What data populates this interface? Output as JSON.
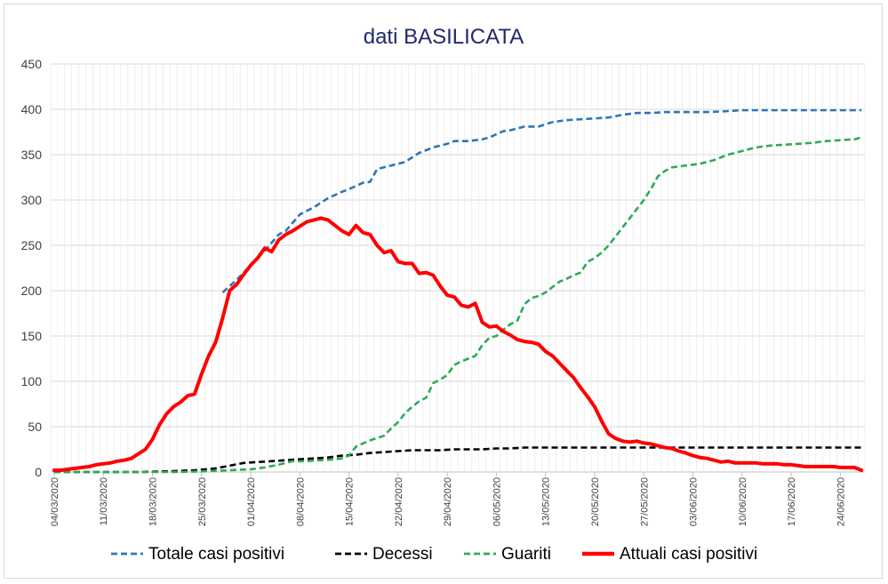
{
  "chart_data": {
    "type": "line",
    "title": "dati BASILICATA",
    "xlabel": "",
    "ylabel": "",
    "ylim": [
      0,
      450
    ],
    "yticks": [
      0,
      50,
      100,
      150,
      200,
      250,
      300,
      350,
      400,
      450
    ],
    "x_start": "04/03/2020",
    "x_end": "28/06/2020",
    "x_tick_labels": [
      "04/03/2020",
      "11/03/2020",
      "18/03/2020",
      "25/03/2020",
      "01/04/2020",
      "08/04/2020",
      "15/04/2020",
      "22/04/2020",
      "29/04/2020",
      "06/05/2020",
      "13/05/2020",
      "20/05/2020",
      "27/05/2020",
      "03/06/2020",
      "10/06/2020",
      "17/06/2020",
      "24/06/2020"
    ],
    "legend_position": "bottom",
    "grid": true,
    "series": [
      {
        "name": "Totale casi positivi",
        "color": "#2e75b6",
        "style": "dashed",
        "points": [
          [
            24,
            198
          ],
          [
            26,
            212
          ],
          [
            28,
            228
          ],
          [
            30,
            244
          ],
          [
            32,
            262
          ],
          [
            33,
            266
          ],
          [
            35,
            284
          ],
          [
            37,
            292
          ],
          [
            39,
            302
          ],
          [
            41,
            309
          ],
          [
            42,
            312
          ],
          [
            44,
            319
          ],
          [
            45,
            320
          ],
          [
            46,
            334
          ],
          [
            48,
            338
          ],
          [
            50,
            342
          ],
          [
            52,
            352
          ],
          [
            54,
            358
          ],
          [
            56,
            362
          ],
          [
            57,
            365
          ],
          [
            59,
            365
          ],
          [
            61,
            367
          ],
          [
            62,
            369
          ],
          [
            64,
            376
          ],
          [
            65,
            377
          ],
          [
            67,
            381
          ],
          [
            69,
            381
          ],
          [
            71,
            386
          ],
          [
            73,
            388
          ],
          [
            75,
            389
          ],
          [
            77,
            390
          ],
          [
            79,
            391
          ],
          [
            81,
            394
          ],
          [
            83,
            396
          ],
          [
            85,
            396
          ],
          [
            87,
            397
          ],
          [
            90,
            397
          ],
          [
            93,
            397
          ],
          [
            96,
            398
          ],
          [
            98,
            399
          ],
          [
            106,
            399
          ],
          [
            112,
            399
          ],
          [
            115,
            399
          ]
        ]
      },
      {
        "name": "Decessi",
        "color": "#000000",
        "style": "dashed",
        "points": [
          [
            0,
            0
          ],
          [
            12,
            0
          ],
          [
            17,
            1
          ],
          [
            20,
            2
          ],
          [
            23,
            4
          ],
          [
            25,
            7
          ],
          [
            27,
            10
          ],
          [
            29,
            11
          ],
          [
            31,
            12
          ],
          [
            33,
            13
          ],
          [
            35,
            14
          ],
          [
            37,
            15
          ],
          [
            39,
            16
          ],
          [
            41,
            18
          ],
          [
            43,
            19
          ],
          [
            45,
            21
          ],
          [
            47,
            22
          ],
          [
            49,
            23
          ],
          [
            51,
            24
          ],
          [
            53,
            24
          ],
          [
            55,
            24
          ],
          [
            57,
            25
          ],
          [
            59,
            25
          ],
          [
            61,
            25
          ],
          [
            63,
            26
          ],
          [
            65,
            26
          ],
          [
            67,
            27
          ],
          [
            71,
            27
          ],
          [
            75,
            27
          ],
          [
            85,
            27
          ],
          [
            100,
            27
          ],
          [
            115,
            27
          ]
        ]
      },
      {
        "name": "Guariti",
        "color": "#2eaa57",
        "style": "dashed",
        "points": [
          [
            0,
            0
          ],
          [
            18,
            0
          ],
          [
            22,
            1
          ],
          [
            25,
            2
          ],
          [
            28,
            3
          ],
          [
            30,
            5
          ],
          [
            32,
            8
          ],
          [
            34,
            12
          ],
          [
            36,
            12
          ],
          [
            38,
            13
          ],
          [
            40,
            14
          ],
          [
            41,
            15
          ],
          [
            42,
            18
          ],
          [
            43,
            28
          ],
          [
            45,
            35
          ],
          [
            47,
            40
          ],
          [
            48,
            48
          ],
          [
            49,
            55
          ],
          [
            50,
            65
          ],
          [
            51,
            72
          ],
          [
            52,
            78
          ],
          [
            53,
            82
          ],
          [
            54,
            98
          ],
          [
            55,
            102
          ],
          [
            56,
            107
          ],
          [
            57,
            118
          ],
          [
            58,
            122
          ],
          [
            59,
            125
          ],
          [
            60,
            128
          ],
          [
            61,
            140
          ],
          [
            62,
            148
          ],
          [
            63,
            150
          ],
          [
            64,
            157
          ],
          [
            65,
            163
          ],
          [
            66,
            167
          ],
          [
            67,
            185
          ],
          [
            68,
            192
          ],
          [
            69,
            194
          ],
          [
            70,
            198
          ],
          [
            71,
            204
          ],
          [
            72,
            210
          ],
          [
            73,
            213
          ],
          [
            74,
            217
          ],
          [
            75,
            220
          ],
          [
            76,
            232
          ],
          [
            77,
            236
          ],
          [
            78,
            242
          ],
          [
            79,
            250
          ],
          [
            80,
            260
          ],
          [
            81,
            270
          ],
          [
            82,
            280
          ],
          [
            83,
            290
          ],
          [
            84,
            300
          ],
          [
            85,
            312
          ],
          [
            86,
            326
          ],
          [
            87,
            332
          ],
          [
            88,
            336
          ],
          [
            89,
            337
          ],
          [
            90,
            338
          ],
          [
            92,
            340
          ],
          [
            94,
            344
          ],
          [
            96,
            350
          ],
          [
            98,
            354
          ],
          [
            100,
            358
          ],
          [
            102,
            360
          ],
          [
            104,
            361
          ],
          [
            106,
            362
          ],
          [
            108,
            363
          ],
          [
            110,
            365
          ],
          [
            112,
            366
          ],
          [
            114,
            367
          ],
          [
            115,
            369
          ]
        ]
      },
      {
        "name": "Attuali casi positivi",
        "color": "#ff0000",
        "style": "solid",
        "points": [
          [
            0,
            2
          ],
          [
            1,
            2
          ],
          [
            2,
            3
          ],
          [
            3,
            4
          ],
          [
            4,
            5
          ],
          [
            5,
            6
          ],
          [
            6,
            8
          ],
          [
            7,
            9
          ],
          [
            8,
            10
          ],
          [
            9,
            12
          ],
          [
            10,
            13
          ],
          [
            11,
            15
          ],
          [
            12,
            20
          ],
          [
            13,
            25
          ],
          [
            14,
            36
          ],
          [
            15,
            52
          ],
          [
            16,
            64
          ],
          [
            17,
            72
          ],
          [
            18,
            77
          ],
          [
            19,
            84
          ],
          [
            20,
            86
          ],
          [
            21,
            108
          ],
          [
            22,
            128
          ],
          [
            23,
            143
          ],
          [
            24,
            170
          ],
          [
            25,
            200
          ],
          [
            26,
            207
          ],
          [
            27,
            218
          ],
          [
            28,
            228
          ],
          [
            29,
            236
          ],
          [
            30,
            247
          ],
          [
            31,
            243
          ],
          [
            32,
            256
          ],
          [
            33,
            262
          ],
          [
            34,
            266
          ],
          [
            35,
            271
          ],
          [
            36,
            276
          ],
          [
            37,
            278
          ],
          [
            38,
            280
          ],
          [
            39,
            278
          ],
          [
            40,
            272
          ],
          [
            41,
            266
          ],
          [
            42,
            262
          ],
          [
            43,
            272
          ],
          [
            44,
            264
          ],
          [
            45,
            262
          ],
          [
            46,
            250
          ],
          [
            47,
            242
          ],
          [
            48,
            244
          ],
          [
            49,
            232
          ],
          [
            50,
            230
          ],
          [
            51,
            230
          ],
          [
            52,
            219
          ],
          [
            53,
            220
          ],
          [
            54,
            217
          ],
          [
            55,
            205
          ],
          [
            56,
            195
          ],
          [
            57,
            193
          ],
          [
            58,
            184
          ],
          [
            59,
            182
          ],
          [
            60,
            186
          ],
          [
            61,
            165
          ],
          [
            62,
            160
          ],
          [
            63,
            161
          ],
          [
            64,
            155
          ],
          [
            65,
            151
          ],
          [
            66,
            146
          ],
          [
            67,
            144
          ],
          [
            68,
            143
          ],
          [
            69,
            141
          ],
          [
            70,
            133
          ],
          [
            71,
            128
          ],
          [
            72,
            120
          ],
          [
            73,
            112
          ],
          [
            74,
            104
          ],
          [
            75,
            93
          ],
          [
            76,
            83
          ],
          [
            77,
            72
          ],
          [
            78,
            56
          ],
          [
            79,
            42
          ],
          [
            80,
            37
          ],
          [
            81,
            34
          ],
          [
            82,
            33
          ],
          [
            83,
            34
          ],
          [
            84,
            32
          ],
          [
            85,
            31
          ],
          [
            86,
            29
          ],
          [
            87,
            27
          ],
          [
            88,
            26
          ],
          [
            89,
            23
          ],
          [
            90,
            21
          ],
          [
            91,
            18
          ],
          [
            92,
            16
          ],
          [
            93,
            15
          ],
          [
            94,
            13
          ],
          [
            95,
            11
          ],
          [
            96,
            12
          ],
          [
            97,
            10
          ],
          [
            98,
            10
          ],
          [
            99,
            10
          ],
          [
            100,
            10
          ],
          [
            101,
            9
          ],
          [
            102,
            9
          ],
          [
            103,
            9
          ],
          [
            104,
            8
          ],
          [
            105,
            8
          ],
          [
            106,
            7
          ],
          [
            107,
            6
          ],
          [
            108,
            6
          ],
          [
            109,
            6
          ],
          [
            110,
            6
          ],
          [
            111,
            6
          ],
          [
            112,
            5
          ],
          [
            113,
            5
          ],
          [
            114,
            5
          ],
          [
            115,
            2
          ]
        ]
      }
    ]
  }
}
